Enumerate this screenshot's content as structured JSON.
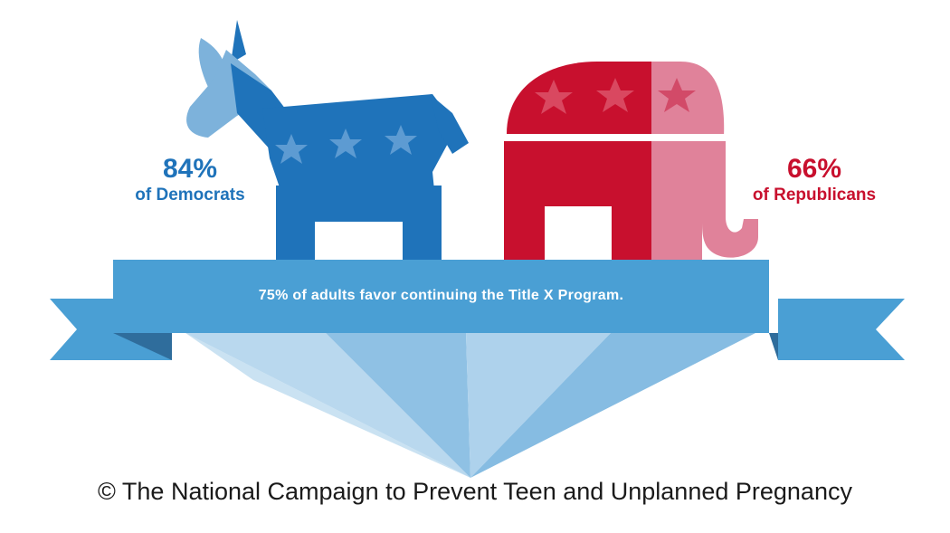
{
  "democrats": {
    "percent": "84%",
    "label": "of Democrats"
  },
  "republicans": {
    "percent": "66%",
    "label": "of Republicans"
  },
  "banner": {
    "text": "75% of adults favor continuing the Title X Program."
  },
  "footer": {
    "copyright": "© The National Campaign to Prevent Teen and Unplanned Pregnancy"
  },
  "colors": {
    "democrat_blue": "#1f73ba",
    "democrat_light": "#7db2db",
    "republican_red": "#c8102e",
    "republican_pink": "#e0829a",
    "banner_blue": "#4a9fd4",
    "banner_dark": "#2f6d9c"
  },
  "icons": [
    "donkey-icon",
    "elephant-icon",
    "star-icon"
  ]
}
